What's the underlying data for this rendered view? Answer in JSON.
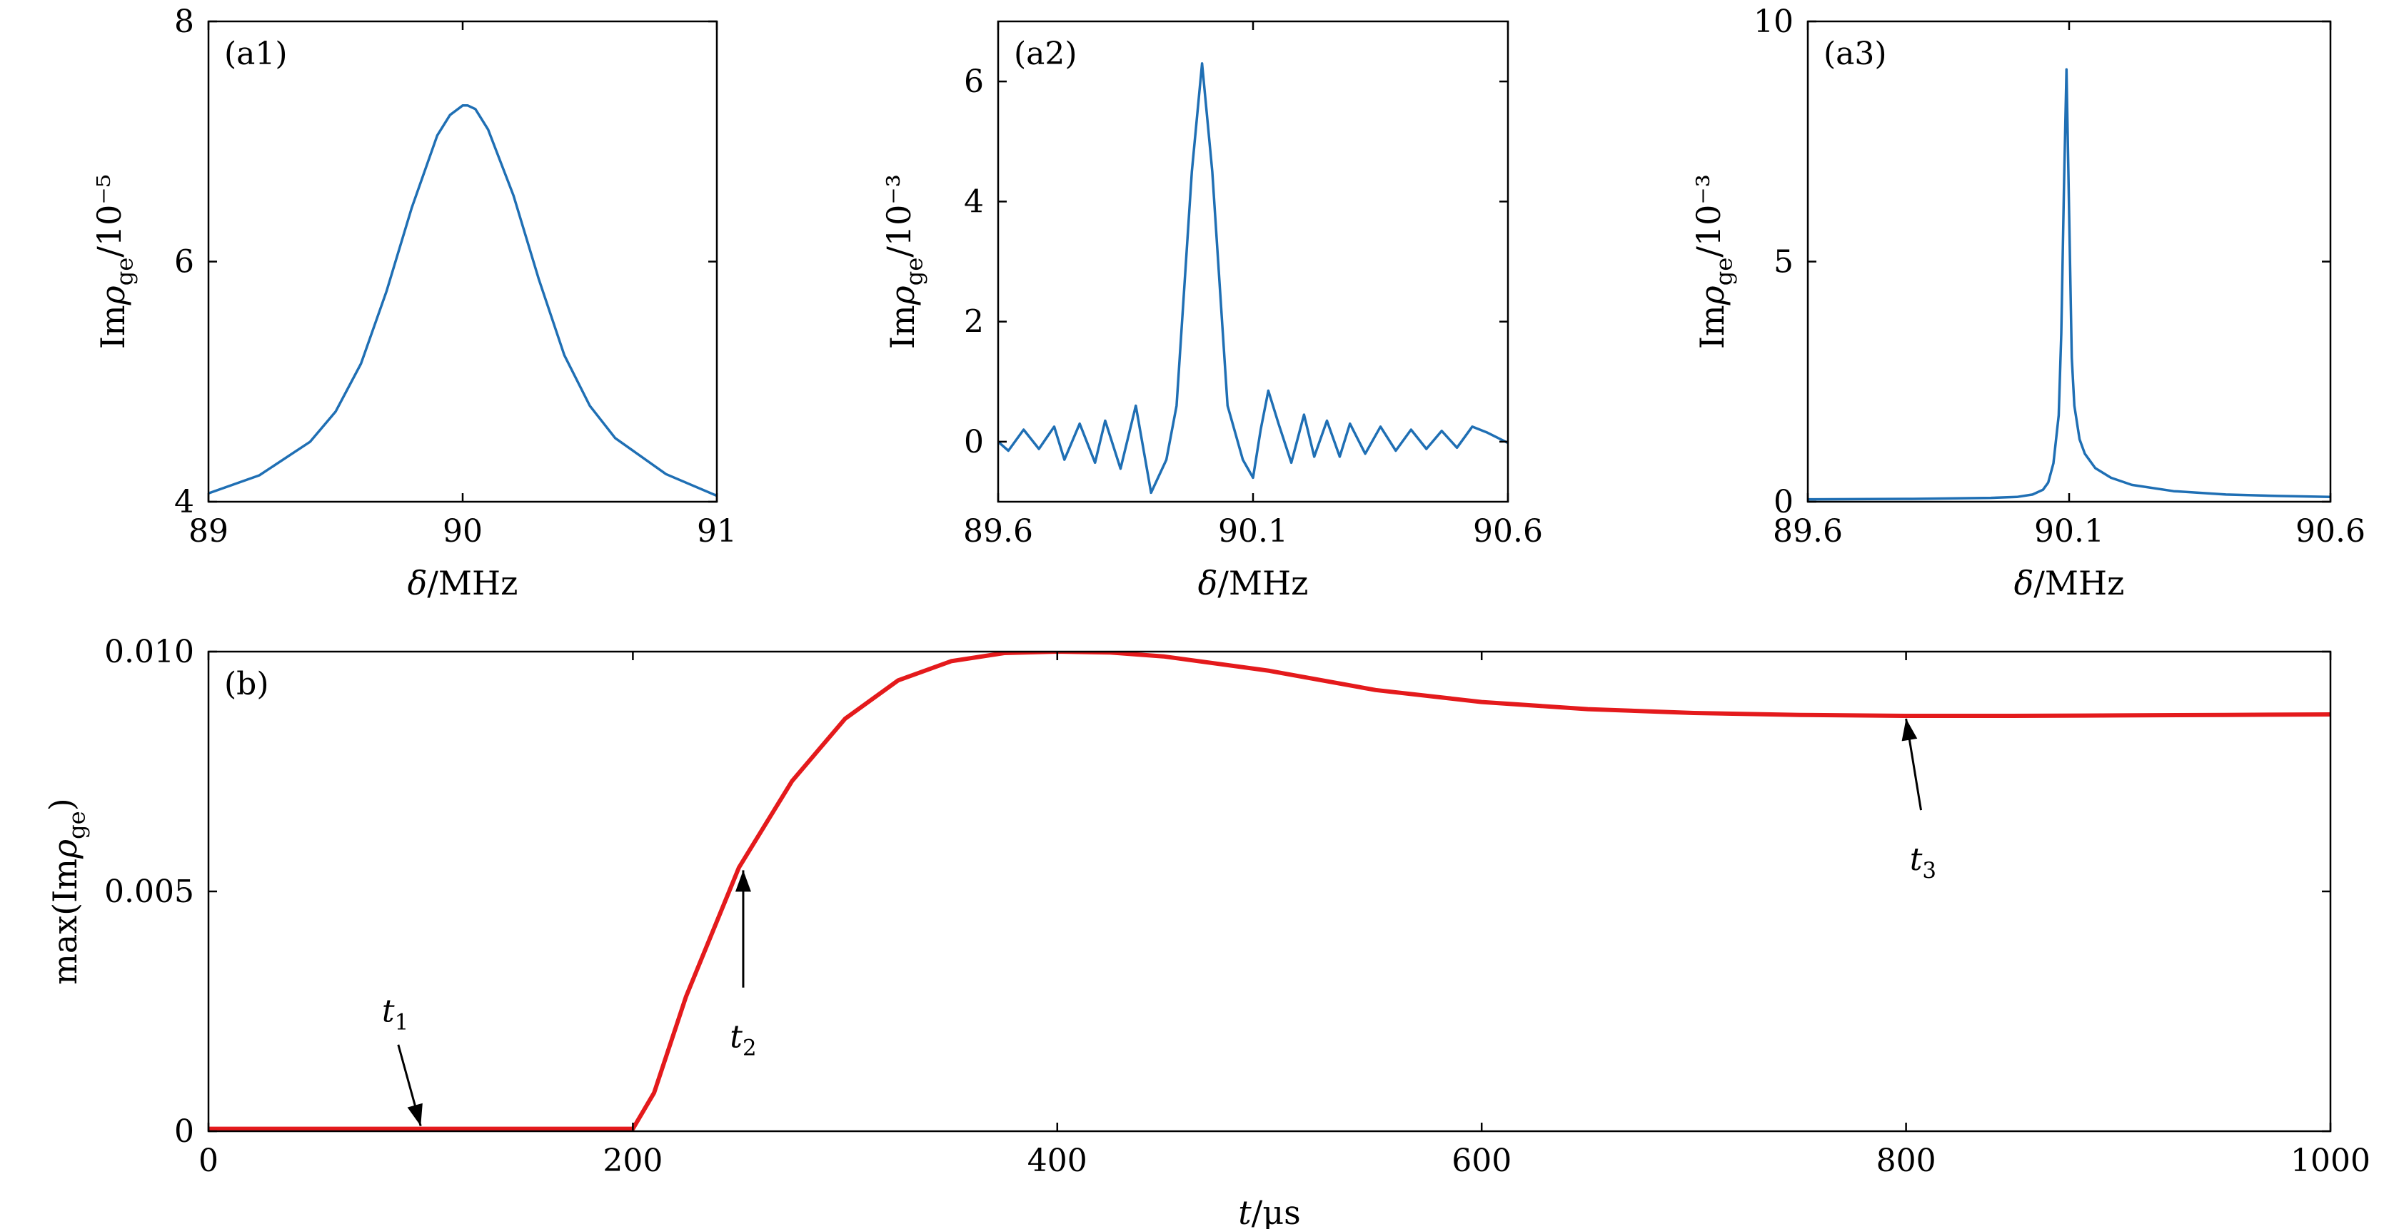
{
  "figure": {
    "colors": {
      "blue": "#1f6fb4",
      "red": "#e41a1c",
      "axis": "#000000"
    }
  },
  "chart_data": [
    {
      "id": "a1",
      "type": "line",
      "panel_label": "(a1)",
      "xlabel": "δ/MHz",
      "ylabel": "Imρge/10⁻⁵",
      "xlim": [
        89,
        91
      ],
      "ylim": [
        4,
        8
      ],
      "xticks": [
        89,
        90,
        91
      ],
      "xtick_labels": [
        "89",
        "90",
        "91"
      ],
      "yticks": [
        4,
        6,
        8
      ],
      "ytick_labels": [
        "4",
        "6",
        "8"
      ],
      "series": [
        {
          "color": "#1f6fb4",
          "x": [
            89.0,
            89.2,
            89.4,
            89.5,
            89.6,
            89.7,
            89.8,
            89.9,
            89.95,
            90.0,
            90.02,
            90.05,
            90.1,
            90.2,
            90.3,
            90.4,
            90.5,
            90.6,
            90.8,
            91.0
          ],
          "y": [
            4.07,
            4.22,
            4.5,
            4.75,
            5.15,
            5.75,
            6.45,
            7.05,
            7.22,
            7.3,
            7.3,
            7.27,
            7.1,
            6.55,
            5.85,
            5.22,
            4.8,
            4.53,
            4.23,
            4.05
          ]
        }
      ]
    },
    {
      "id": "a2",
      "type": "line",
      "panel_label": "(a2)",
      "xlabel": "δ/MHz",
      "ylabel": "Imρge/10⁻³",
      "xlim": [
        89.6,
        90.6
      ],
      "ylim": [
        -1,
        7
      ],
      "xticks": [
        89.6,
        90.1,
        90.6
      ],
      "xtick_labels": [
        "89.6",
        "90.1",
        "90.6"
      ],
      "yticks": [
        0,
        2,
        4,
        6
      ],
      "ytick_labels": [
        "0",
        "2",
        "4",
        "6"
      ],
      "series": [
        {
          "color": "#1f6fb4",
          "x": [
            89.6,
            89.62,
            89.65,
            89.68,
            89.71,
            89.73,
            89.76,
            89.79,
            89.81,
            89.84,
            89.87,
            89.9,
            89.93,
            89.95,
            89.98,
            90.0,
            90.02,
            90.05,
            90.08,
            90.1,
            90.115,
            90.13,
            90.15,
            90.175,
            90.2,
            90.22,
            90.245,
            90.27,
            90.29,
            90.32,
            90.35,
            90.38,
            90.41,
            90.44,
            90.47,
            90.5,
            90.53,
            90.56,
            90.6
          ],
          "y": [
            0.0,
            -0.15,
            0.2,
            -0.12,
            0.25,
            -0.3,
            0.3,
            -0.35,
            0.35,
            -0.45,
            0.6,
            -0.85,
            -0.3,
            0.6,
            4.5,
            6.3,
            4.5,
            0.6,
            -0.3,
            -0.6,
            0.2,
            0.85,
            0.3,
            -0.35,
            0.45,
            -0.25,
            0.35,
            -0.25,
            0.3,
            -0.2,
            0.25,
            -0.15,
            0.2,
            -0.12,
            0.18,
            -0.1,
            0.25,
            0.15,
            -0.02
          ]
        }
      ]
    },
    {
      "id": "a3",
      "type": "line",
      "panel_label": "(a3)",
      "xlabel": "δ/MHz",
      "ylabel": "Imρge/10⁻³",
      "xlim": [
        89.6,
        90.6
      ],
      "ylim": [
        0,
        10
      ],
      "xticks": [
        89.6,
        90.1,
        90.6
      ],
      "xtick_labels": [
        "89.6",
        "90.1",
        "90.6"
      ],
      "yticks": [
        0,
        5,
        10
      ],
      "ytick_labels": [
        "0",
        "5",
        "10"
      ],
      "series": [
        {
          "color": "#1f6fb4",
          "x": [
            89.6,
            89.8,
            89.95,
            90.0,
            90.03,
            90.05,
            90.06,
            90.07,
            90.08,
            90.085,
            90.09,
            90.095,
            90.1,
            90.105,
            90.11,
            90.12,
            90.13,
            90.15,
            90.18,
            90.22,
            90.3,
            90.4,
            90.5,
            90.6
          ],
          "y": [
            0.05,
            0.06,
            0.08,
            0.1,
            0.15,
            0.25,
            0.4,
            0.8,
            1.8,
            3.5,
            6.5,
            9.0,
            6.0,
            3.0,
            2.0,
            1.3,
            1.0,
            0.7,
            0.5,
            0.35,
            0.22,
            0.15,
            0.12,
            0.1
          ]
        }
      ]
    },
    {
      "id": "b",
      "type": "line",
      "panel_label": "(b)",
      "xlabel": "t/μs",
      "ylabel": "max(Imρge)",
      "xlim": [
        0,
        1000
      ],
      "ylim": [
        0,
        0.01
      ],
      "xticks": [
        0,
        200,
        400,
        600,
        800,
        1000
      ],
      "xtick_labels": [
        "0",
        "200",
        "400",
        "600",
        "800",
        "1000"
      ],
      "yticks": [
        0,
        0.005,
        0.01
      ],
      "ytick_labels": [
        "0",
        "0.005",
        "0.010"
      ],
      "series": [
        {
          "color": "#e41a1c",
          "x": [
            0,
            200,
            210,
            225,
            250,
            275,
            300,
            325,
            350,
            375,
            400,
            425,
            450,
            500,
            550,
            600,
            650,
            700,
            750,
            800,
            850,
            900,
            950,
            1000
          ],
          "y": [
            5e-05,
            5e-05,
            0.0008,
            0.0028,
            0.0055,
            0.0073,
            0.0086,
            0.0094,
            0.0098,
            0.00997,
            0.01,
            0.00998,
            0.0099,
            0.0096,
            0.0092,
            0.00895,
            0.0088,
            0.00872,
            0.00868,
            0.00866,
            0.00866,
            0.00867,
            0.00868,
            0.00869
          ]
        }
      ],
      "annotations": [
        {
          "label": "t",
          "subscript": "1",
          "x": 100,
          "y": 5e-05,
          "text_x": 88,
          "text_y": 0.0024
        },
        {
          "label": "t",
          "subscript": "2",
          "x": 252,
          "y": 0.0055,
          "text_x": 252,
          "text_y": 0.0024
        },
        {
          "label": "t",
          "subscript": "3",
          "x": 800,
          "y": 0.00866,
          "text_x": 808,
          "text_y": 0.0061
        }
      ]
    }
  ]
}
